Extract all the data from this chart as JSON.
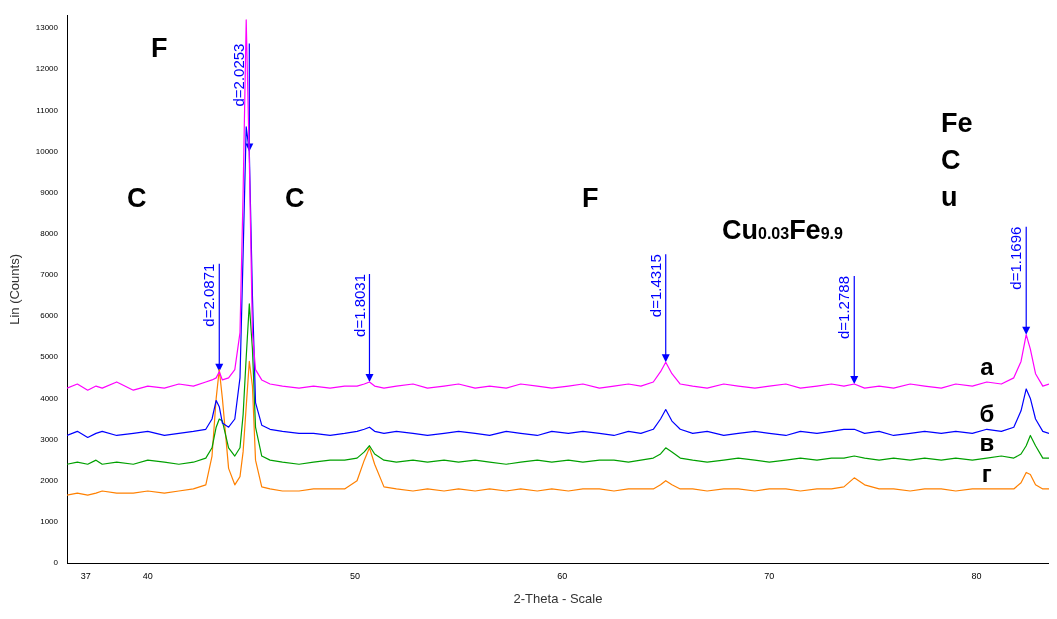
{
  "chart_data": {
    "type": "line",
    "xlabel": "2-Theta - Scale",
    "ylabel": "Lin (Counts)",
    "x": [
      36.1,
      36.6,
      37.1,
      37.5,
      37.8,
      38.5,
      39.3,
      40,
      40.8,
      41.5,
      42.2,
      42.8,
      43.1,
      43.3,
      43.45,
      43.6,
      43.9,
      44.2,
      44.45,
      44.6,
      44.75,
      44.9,
      45.05,
      45.2,
      45.5,
      45.9,
      46.5,
      47.3,
      48,
      48.8,
      49.5,
      50.1,
      50.45,
      50.7,
      50.95,
      51.4,
      52,
      52.8,
      53.5,
      54.3,
      55,
      55.8,
      56.5,
      57.3,
      58,
      58.8,
      59.5,
      60.3,
      61,
      61.8,
      62.5,
      63.2,
      63.8,
      64.4,
      64.75,
      65,
      65.3,
      65.7,
      66.3,
      67,
      67.8,
      68.5,
      69.3,
      70,
      70.8,
      71.5,
      72.3,
      73,
      73.6,
      74.1,
      74.6,
      75.3,
      76,
      76.8,
      77.5,
      78.3,
      79,
      79.8,
      80.5,
      81.2,
      81.8,
      82.15,
      82.4,
      82.6,
      82.85,
      83.2,
      83.5
    ],
    "series": [
      {
        "name": "а",
        "color": "#ff00ff",
        "values": [
          4250,
          4350,
          4200,
          4300,
          4250,
          4400,
          4200,
          4300,
          4250,
          4350,
          4300,
          4400,
          4450,
          4500,
          4650,
          4450,
          4500,
          4700,
          5600,
          9000,
          13200,
          9800,
          5600,
          4700,
          4450,
          4350,
          4300,
          4250,
          4300,
          4250,
          4300,
          4300,
          4350,
          4400,
          4300,
          4250,
          4300,
          4350,
          4250,
          4300,
          4350,
          4250,
          4300,
          4250,
          4350,
          4300,
          4250,
          4300,
          4350,
          4250,
          4300,
          4350,
          4300,
          4400,
          4650,
          4880,
          4600,
          4350,
          4300,
          4250,
          4350,
          4300,
          4250,
          4300,
          4350,
          4250,
          4300,
          4350,
          4300,
          4350,
          4250,
          4300,
          4250,
          4350,
          4300,
          4250,
          4350,
          4300,
          4400,
          4350,
          4500,
          4900,
          5550,
          5200,
          4600,
          4300,
          4350
        ]
      },
      {
        "name": "б",
        "color": "#0000ff",
        "values": [
          3100,
          3200,
          3050,
          3150,
          3200,
          3100,
          3150,
          3200,
          3100,
          3150,
          3200,
          3250,
          3500,
          3950,
          3800,
          3400,
          3300,
          3500,
          4500,
          7500,
          10600,
          10000,
          6500,
          3900,
          3350,
          3250,
          3200,
          3150,
          3150,
          3100,
          3150,
          3200,
          3250,
          3300,
          3200,
          3150,
          3200,
          3150,
          3100,
          3150,
          3200,
          3150,
          3100,
          3200,
          3150,
          3100,
          3200,
          3150,
          3200,
          3150,
          3100,
          3200,
          3150,
          3250,
          3500,
          3730,
          3450,
          3250,
          3150,
          3200,
          3100,
          3150,
          3200,
          3150,
          3100,
          3200,
          3150,
          3200,
          3250,
          3250,
          3150,
          3200,
          3100,
          3150,
          3200,
          3150,
          3200,
          3150,
          3250,
          3200,
          3300,
          3700,
          4230,
          4000,
          3500,
          3200,
          3150
        ]
      },
      {
        "name": "в",
        "color": "#00a000",
        "values": [
          2400,
          2450,
          2400,
          2500,
          2400,
          2450,
          2400,
          2500,
          2450,
          2400,
          2450,
          2550,
          2800,
          3300,
          3500,
          3450,
          2800,
          2600,
          2800,
          3600,
          5000,
          6300,
          5200,
          3300,
          2600,
          2500,
          2450,
          2400,
          2450,
          2500,
          2500,
          2550,
          2700,
          2850,
          2650,
          2500,
          2450,
          2500,
          2450,
          2500,
          2450,
          2500,
          2450,
          2400,
          2450,
          2500,
          2450,
          2500,
          2450,
          2500,
          2500,
          2450,
          2500,
          2550,
          2650,
          2800,
          2700,
          2550,
          2500,
          2450,
          2500,
          2550,
          2500,
          2450,
          2500,
          2550,
          2500,
          2550,
          2550,
          2600,
          2550,
          2500,
          2550,
          2500,
          2550,
          2500,
          2550,
          2500,
          2550,
          2600,
          2550,
          2650,
          2850,
          3100,
          2850,
          2550,
          2550
        ]
      },
      {
        "name": "г",
        "color": "#ff8000",
        "values": [
          1650,
          1700,
          1650,
          1700,
          1750,
          1700,
          1700,
          1750,
          1700,
          1750,
          1800,
          1900,
          2600,
          4000,
          4700,
          4000,
          2300,
          1900,
          2100,
          2700,
          3800,
          4900,
          4300,
          2500,
          1850,
          1800,
          1750,
          1750,
          1800,
          1800,
          1800,
          2000,
          2500,
          2800,
          2400,
          1850,
          1800,
          1750,
          1800,
          1750,
          1800,
          1750,
          1800,
          1750,
          1800,
          1750,
          1800,
          1750,
          1800,
          1800,
          1750,
          1800,
          1800,
          1800,
          1900,
          2000,
          1900,
          1800,
          1800,
          1750,
          1800,
          1800,
          1750,
          1800,
          1800,
          1750,
          1800,
          1800,
          1850,
          2070,
          1900,
          1800,
          1800,
          1750,
          1800,
          1800,
          1750,
          1800,
          1800,
          1800,
          1800,
          1950,
          2200,
          2150,
          1900,
          1800,
          1800
        ]
      }
    ],
    "xlim": [
      36.1,
      83.5
    ],
    "xticks": [
      {
        "value": 37,
        "label": "37"
      },
      40,
      50,
      60,
      70,
      80
    ],
    "ylim": [
      0,
      13300
    ],
    "yticks": [
      0,
      1000,
      2000,
      3000,
      4000,
      5000,
      6000,
      7000,
      8000,
      9000,
      10000,
      11000,
      12000,
      13000
    ],
    "annotations": [
      "F",
      "C",
      "C",
      "F",
      "Fe\nC\nu",
      "Cu$_{0.03}$Fe$_{9.9}$",
      {
        "text": "d=2.0871",
        "x": 43.45,
        "y": 4650
      },
      {
        "text": "d=2.0253",
        "x": 44.9,
        "y": 10000
      },
      {
        "text": "d=1.8031",
        "x": 50.7,
        "y": 4400
      },
      {
        "text": "d=1.4315",
        "x": 65,
        "y": 4880
      },
      {
        "text": "d=1.2788",
        "x": 74.1,
        "y": 4350
      },
      {
        "text": "d=1.1696",
        "x": 82.4,
        "y": 5550
      }
    ]
  }
}
